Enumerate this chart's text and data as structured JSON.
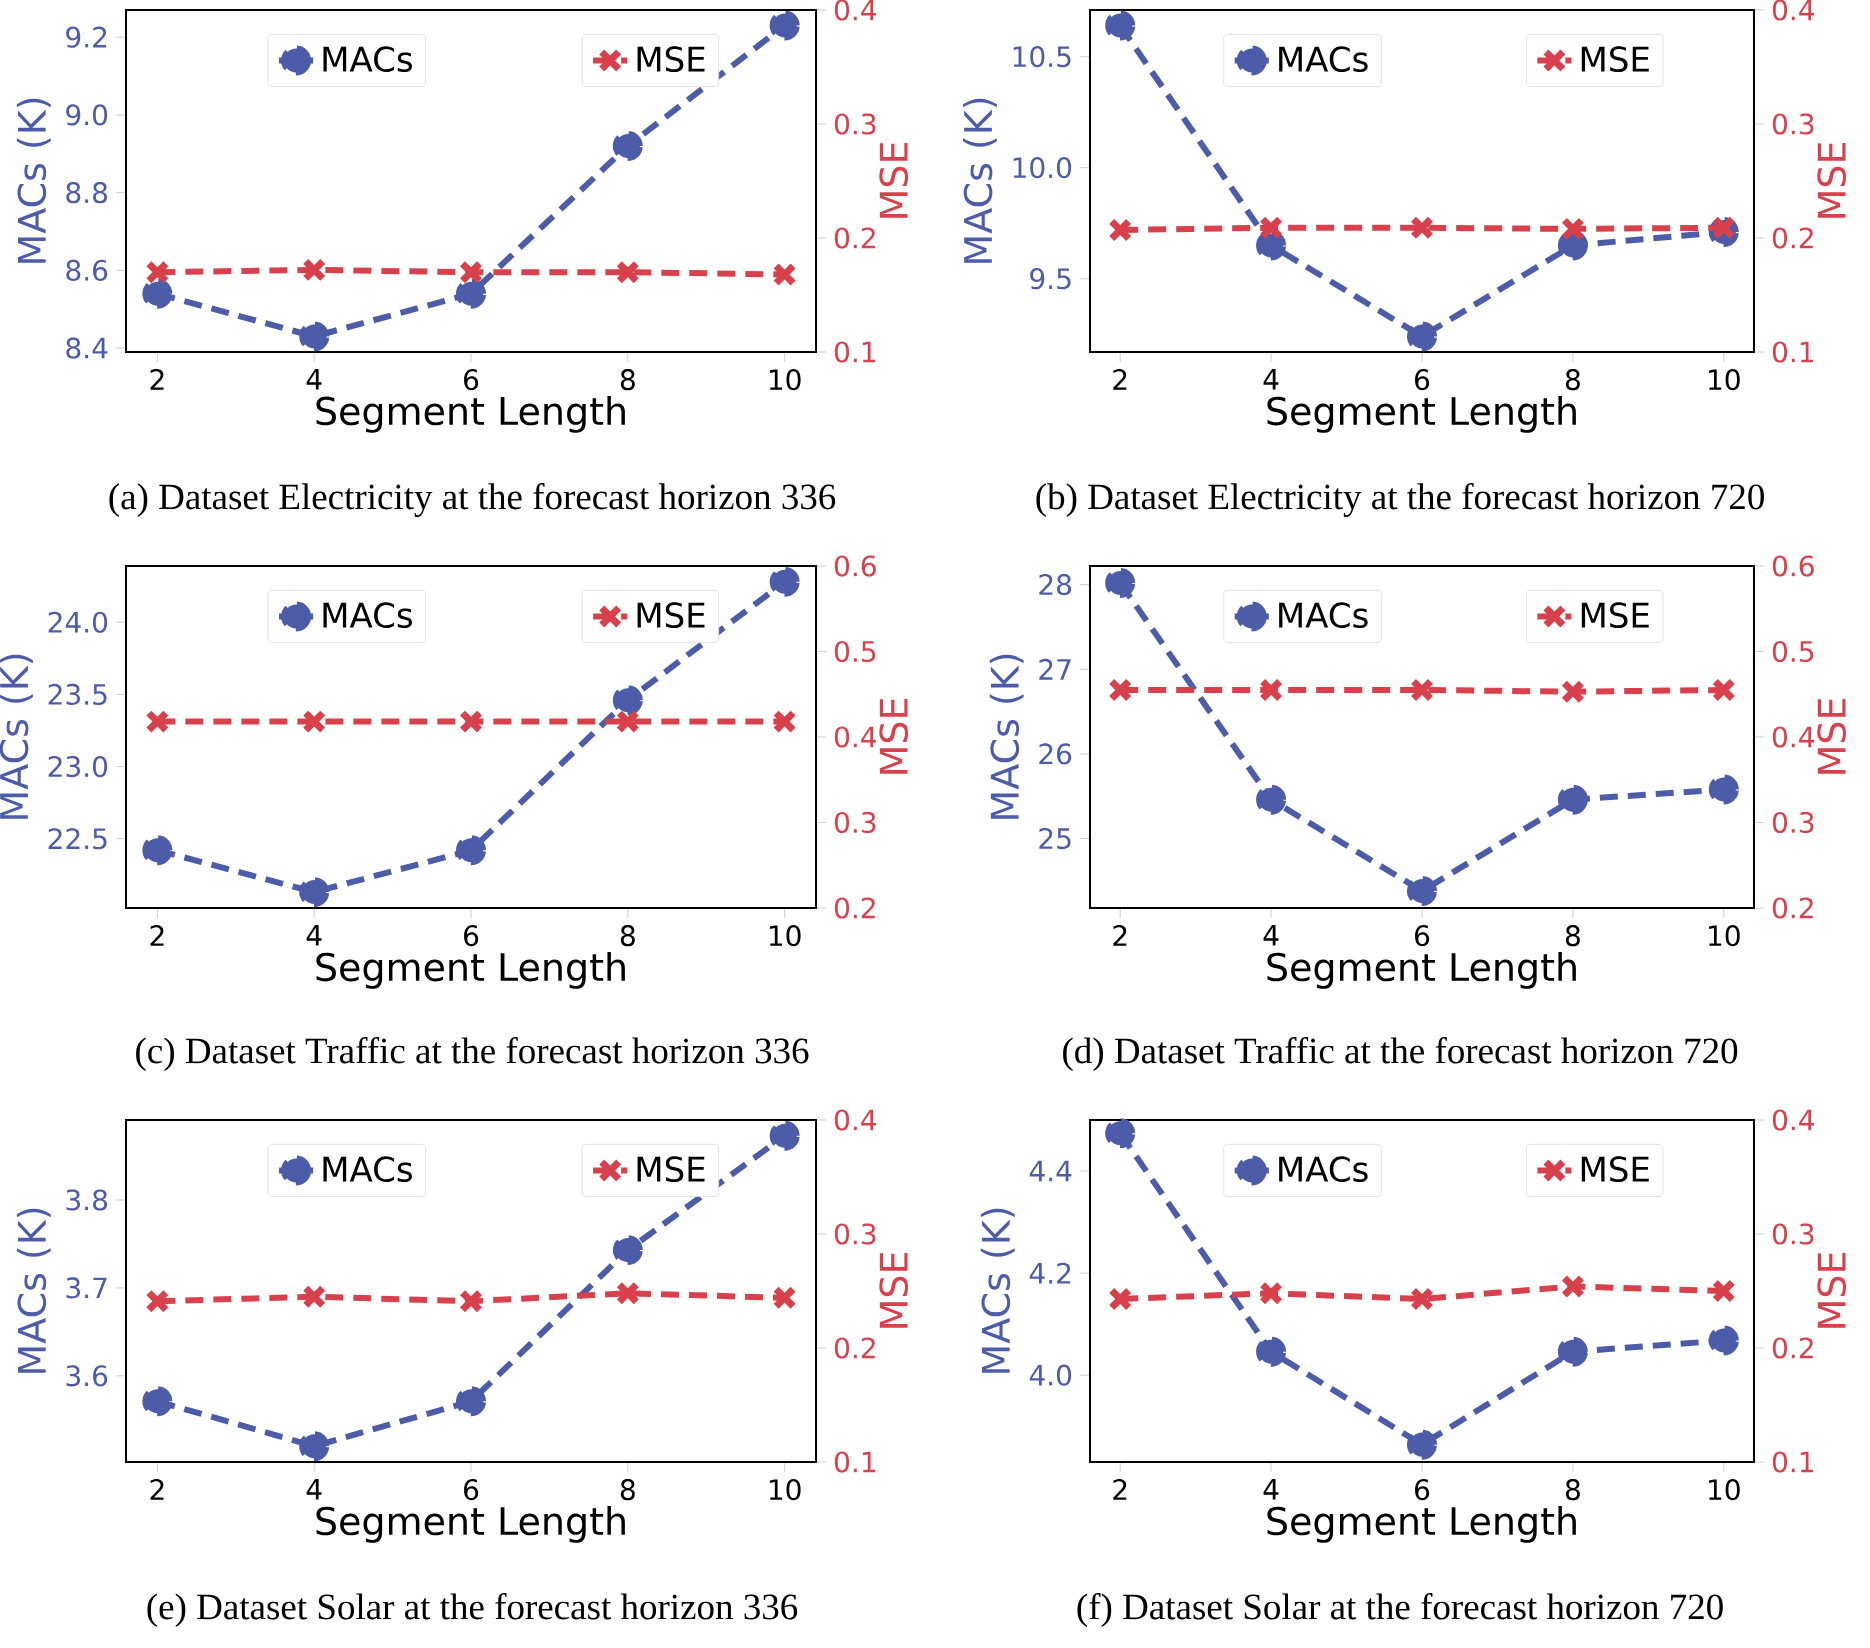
{
  "chart_data": [
    {
      "type": "line",
      "x": [
        2,
        4,
        6,
        8,
        10
      ],
      "xlim": [
        1.6,
        10.4
      ],
      "xticks": [
        2,
        4,
        6,
        8,
        10
      ],
      "ylim": [
        8.39,
        9.27
      ],
      "yticks": [
        8.4,
        8.6,
        8.8,
        {
          "value": 9.0,
          "label": "9.0"
        },
        9.2
      ],
      "y2lim": [
        0.1,
        0.4
      ],
      "y2ticks": [
        0.1,
        0.2,
        0.3,
        0.4
      ],
      "xlabel": "Segment Length",
      "ylabel": "MACs (K)",
      "y2label": "MSE",
      "legend": "top",
      "line_style": "dashed",
      "series": [
        {
          "name": "MACs",
          "color": "#4c5ca8",
          "marker": "circle",
          "values": [
            8.54,
            8.43,
            8.54,
            8.92,
            9.23
          ]
        },
        {
          "name": "MSE",
          "color": "#d8404c",
          "marker": "cross",
          "axis": "y2",
          "values": [
            0.17,
            0.172,
            0.17,
            0.17,
            0.168
          ]
        }
      ],
      "annotations": [
        "(a) Dataset Electricity at the forecast horizon 336"
      ]
    },
    {
      "type": "line",
      "x": [
        2,
        4,
        6,
        8,
        10
      ],
      "xlim": [
        1.6,
        10.4
      ],
      "xticks": [
        2,
        4,
        6,
        8,
        10
      ],
      "ylim": [
        9.17,
        10.71
      ],
      "yticks": [
        9.5,
        {
          "value": 10.0,
          "label": "10.0"
        },
        10.5
      ],
      "y2lim": [
        0.1,
        0.4
      ],
      "y2ticks": [
        0.1,
        0.2,
        0.3,
        0.4
      ],
      "xlabel": "Segment Length",
      "ylabel": "MACs (K)",
      "y2label": "MSE",
      "legend": "top",
      "line_style": "dashed",
      "series": [
        {
          "name": "MACs",
          "color": "#4c5ca8",
          "marker": "circle",
          "values": [
            10.64,
            9.65,
            9.24,
            9.65,
            9.71
          ]
        },
        {
          "name": "MSE",
          "color": "#d8404c",
          "marker": "cross",
          "axis": "y2",
          "values": [
            0.207,
            0.209,
            0.209,
            0.208,
            0.209
          ]
        }
      ],
      "annotations": [
        "(b) Dataset Electricity at the forecast horizon 720"
      ]
    },
    {
      "type": "line",
      "x": [
        2,
        4,
        6,
        8,
        10
      ],
      "xlim": [
        1.6,
        10.4
      ],
      "xticks": [
        2,
        4,
        6,
        8,
        10
      ],
      "ylim": [
        22.02,
        24.39
      ],
      "yticks": [
        22.5,
        {
          "value": 23.0,
          "label": "23.0"
        },
        23.5,
        {
          "value": 24.0,
          "label": "24.0"
        }
      ],
      "y2lim": [
        0.2,
        0.6
      ],
      "y2ticks": [
        0.2,
        0.3,
        0.4,
        0.5,
        0.6
      ],
      "xlabel": "Segment Length",
      "ylabel": "MACs (K)",
      "y2label": "MSE",
      "legend": "top",
      "line_style": "dashed",
      "series": [
        {
          "name": "MACs",
          "color": "#4c5ca8",
          "marker": "circle",
          "values": [
            22.42,
            22.13,
            22.42,
            23.46,
            24.28
          ]
        },
        {
          "name": "MSE",
          "color": "#d8404c",
          "marker": "cross",
          "axis": "y2",
          "values": [
            0.418,
            0.418,
            0.418,
            0.418,
            0.418
          ]
        }
      ],
      "annotations": [
        "(c) Dataset Traffic at the forecast horizon 336"
      ]
    },
    {
      "type": "line",
      "x": [
        2,
        4,
        6,
        8,
        10
      ],
      "xlim": [
        1.6,
        10.4
      ],
      "xticks": [
        2,
        4,
        6,
        8,
        10
      ],
      "ylim": [
        24.18,
        28.22
      ],
      "yticks": [
        25,
        26,
        27,
        28
      ],
      "y2lim": [
        0.2,
        0.6
      ],
      "y2ticks": [
        0.2,
        0.3,
        0.4,
        0.5,
        0.6
      ],
      "xlabel": "Segment Length",
      "ylabel": "MACs (K)",
      "y2label": "MSE",
      "legend": "top",
      "line_style": "dashed",
      "series": [
        {
          "name": "MACs",
          "color": "#4c5ca8",
          "marker": "circle",
          "values": [
            28.02,
            25.46,
            24.38,
            25.46,
            25.58
          ]
        },
        {
          "name": "MSE",
          "color": "#d8404c",
          "marker": "cross",
          "axis": "y2",
          "values": [
            0.455,
            0.455,
            0.455,
            0.453,
            0.455
          ]
        }
      ],
      "annotations": [
        "(d) Dataset Traffic at the forecast horizon 720"
      ]
    },
    {
      "type": "line",
      "x": [
        2,
        4,
        6,
        8,
        10
      ],
      "xlim": [
        1.6,
        10.4
      ],
      "xticks": [
        2,
        4,
        6,
        8,
        10
      ],
      "ylim": [
        3.502,
        3.891
      ],
      "yticks": [
        3.6,
        3.7,
        3.8
      ],
      "y2lim": [
        0.1,
        0.4
      ],
      "y2ticks": [
        0.1,
        0.2,
        0.3,
        0.4
      ],
      "xlabel": "Segment Length",
      "ylabel": "MACs (K)",
      "y2label": "MSE",
      "legend": "top",
      "line_style": "dashed",
      "series": [
        {
          "name": "MACs",
          "color": "#4c5ca8",
          "marker": "circle",
          "values": [
            3.571,
            3.52,
            3.571,
            3.743,
            3.873
          ]
        },
        {
          "name": "MSE",
          "color": "#d8404c",
          "marker": "cross",
          "axis": "y2",
          "values": [
            0.241,
            0.245,
            0.241,
            0.248,
            0.244
          ]
        }
      ],
      "annotations": [
        "(e) Dataset Solar at the forecast horizon 336"
      ]
    },
    {
      "type": "line",
      "x": [
        2,
        4,
        6,
        8,
        10
      ],
      "xlim": [
        1.6,
        10.4
      ],
      "xticks": [
        2,
        4,
        6,
        8,
        10
      ],
      "ylim": [
        3.83,
        4.5
      ],
      "yticks": [
        {
          "value": 4.0,
          "label": "4.0"
        },
        4.2,
        4.4
      ],
      "y2lim": [
        0.1,
        0.4
      ],
      "y2ticks": [
        0.1,
        0.2,
        0.3,
        0.4
      ],
      "xlabel": "Segment Length",
      "ylabel": "MACs (K)",
      "y2label": "MSE",
      "legend": "top",
      "line_style": "dashed",
      "series": [
        {
          "name": "MACs",
          "color": "#4c5ca8",
          "marker": "circle",
          "values": [
            4.474,
            4.046,
            3.864,
            4.046,
            4.068
          ]
        },
        {
          "name": "MSE",
          "color": "#d8404c",
          "marker": "cross",
          "axis": "y2",
          "values": [
            0.243,
            0.248,
            0.243,
            0.254,
            0.25
          ]
        }
      ],
      "annotations": [
        "(f) Dataset Solar at the forecast horizon 720"
      ]
    }
  ]
}
